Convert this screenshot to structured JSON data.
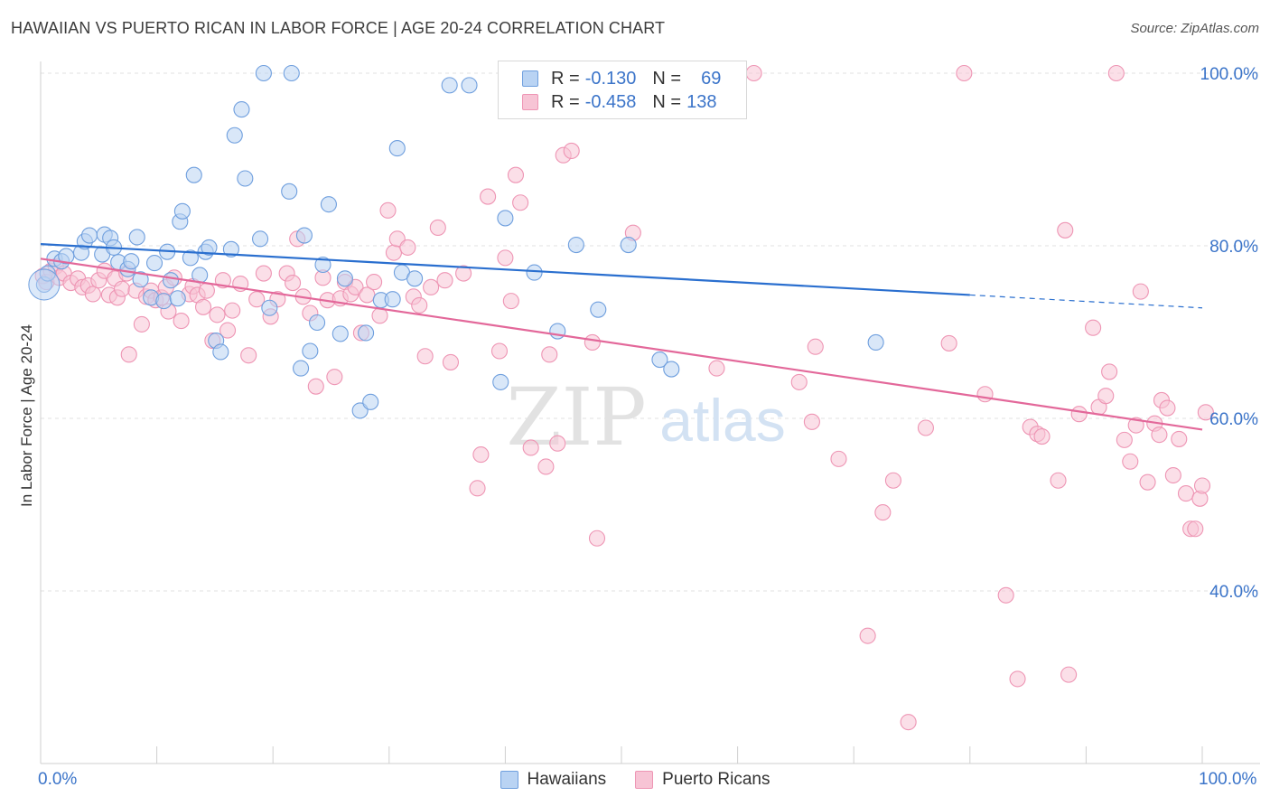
{
  "title": "HAWAIIAN VS PUERTO RICAN IN LABOR FORCE | AGE 20-24 CORRELATION CHART",
  "source": "Source: ZipAtlas.com",
  "watermark": {
    "zip": "ZIP",
    "atlas": "atlas"
  },
  "colors": {
    "blue": "#3b74c9",
    "blue_fill": "#b9d3f3",
    "blue_stroke": "#6f9fde",
    "blue_line": "#2a6fcf",
    "pink": "#e8719b",
    "pink_fill": "#f7c4d5",
    "pink_stroke": "#ee95b4",
    "pink_line": "#e3689a",
    "grid": "#e0e0e0"
  },
  "legend": {
    "rows": [
      {
        "r_label": "R =",
        "r_value": "-0.130",
        "n_label": "N =",
        "n_value": "69",
        "swatch": "blue"
      },
      {
        "r_label": "R =",
        "r_value": "-0.458",
        "n_label": "N =",
        "n_value": "138",
        "swatch": "pink"
      }
    ]
  },
  "bottom_legend": [
    {
      "label": "Hawaiians",
      "swatch": "blue"
    },
    {
      "label": "Puerto Ricans",
      "swatch": "pink"
    }
  ],
  "chart_data": {
    "type": "scatter",
    "xlabel": "",
    "ylabel": "In Labor Force | Age 20-24",
    "xlim": [
      0,
      100
    ],
    "ylim": [
      20,
      104
    ],
    "x_tick_labels": [
      "0.0%",
      "100.0%"
    ],
    "y_ticks": [
      {
        "value": 100,
        "label": "100.0%"
      },
      {
        "value": 80,
        "label": "80.0%"
      },
      {
        "value": 60,
        "label": "60.0%"
      },
      {
        "value": 40,
        "label": "40.0%"
      }
    ],
    "grid": true,
    "legend_position": "top-center",
    "series": [
      {
        "name": "Hawaiians",
        "color": "blue",
        "trend": {
          "x0": 0,
          "y0": 80.2,
          "x1": 80,
          "y1": 74.3,
          "dash_to": 100,
          "dash_y": 72.8
        },
        "points": [
          [
            0.3,
            75.5
          ],
          [
            0.6,
            76.8
          ],
          [
            1.2,
            78.5
          ],
          [
            1.8,
            78.2
          ],
          [
            2.2,
            78.8
          ],
          [
            3.5,
            79.2
          ],
          [
            3.8,
            80.5
          ],
          [
            4.2,
            81.2
          ],
          [
            5.3,
            79.0
          ],
          [
            5.5,
            81.3
          ],
          [
            6.0,
            80.9
          ],
          [
            6.3,
            79.8
          ],
          [
            6.7,
            78.1
          ],
          [
            7.5,
            77.3
          ],
          [
            7.8,
            78.2
          ],
          [
            8.3,
            81.0
          ],
          [
            8.6,
            76.1
          ],
          [
            9.5,
            74.0
          ],
          [
            9.8,
            78.0
          ],
          [
            10.6,
            73.6
          ],
          [
            10.9,
            79.3
          ],
          [
            11.2,
            76.0
          ],
          [
            11.8,
            73.9
          ],
          [
            12.0,
            82.8
          ],
          [
            12.2,
            84.0
          ],
          [
            12.9,
            78.6
          ],
          [
            13.2,
            88.2
          ],
          [
            13.7,
            76.6
          ],
          [
            14.2,
            79.3
          ],
          [
            14.5,
            79.8
          ],
          [
            15.1,
            69.0
          ],
          [
            15.5,
            67.7
          ],
          [
            16.4,
            79.6
          ],
          [
            16.7,
            92.8
          ],
          [
            17.3,
            95.8
          ],
          [
            17.6,
            87.8
          ],
          [
            18.9,
            80.8
          ],
          [
            19.2,
            100.0
          ],
          [
            19.7,
            72.8
          ],
          [
            21.4,
            86.3
          ],
          [
            21.6,
            100.0
          ],
          [
            22.4,
            65.8
          ],
          [
            22.7,
            81.2
          ],
          [
            23.2,
            67.8
          ],
          [
            23.8,
            71.1
          ],
          [
            24.3,
            77.8
          ],
          [
            24.8,
            84.8
          ],
          [
            25.8,
            69.8
          ],
          [
            26.2,
            76.2
          ],
          [
            27.5,
            60.9
          ],
          [
            28.0,
            69.9
          ],
          [
            28.4,
            61.9
          ],
          [
            29.3,
            73.7
          ],
          [
            30.3,
            73.8
          ],
          [
            30.7,
            91.3
          ],
          [
            31.1,
            76.9
          ],
          [
            32.2,
            76.2
          ],
          [
            35.2,
            98.6
          ],
          [
            36.9,
            98.6
          ],
          [
            39.6,
            64.2
          ],
          [
            40.0,
            83.2
          ],
          [
            42.5,
            76.9
          ],
          [
            44.5,
            70.1
          ],
          [
            46.1,
            80.1
          ],
          [
            48.0,
            72.6
          ],
          [
            50.6,
            80.1
          ],
          [
            53.3,
            66.8
          ],
          [
            54.3,
            65.7
          ],
          [
            71.9,
            68.8
          ]
        ]
      },
      {
        "name": "Puerto Ricans",
        "color": "pink",
        "trend": {
          "x0": 0,
          "y0": 78.5,
          "x1": 100,
          "y1": 58.7
        },
        "points": [
          [
            0.2,
            76.5
          ],
          [
            0.5,
            75.8
          ],
          [
            0.9,
            77.1
          ],
          [
            1.3,
            77.6
          ],
          [
            1.6,
            76.3
          ],
          [
            2.0,
            76.8
          ],
          [
            2.6,
            75.7
          ],
          [
            3.2,
            76.2
          ],
          [
            3.6,
            75.2
          ],
          [
            4.1,
            75.4
          ],
          [
            4.5,
            74.4
          ],
          [
            5.0,
            76.0
          ],
          [
            5.5,
            77.1
          ],
          [
            5.9,
            74.3
          ],
          [
            6.4,
            76.2
          ],
          [
            6.6,
            74.0
          ],
          [
            7.0,
            75.0
          ],
          [
            7.4,
            76.8
          ],
          [
            7.6,
            67.4
          ],
          [
            8.2,
            74.8
          ],
          [
            8.7,
            70.9
          ],
          [
            9.1,
            74.1
          ],
          [
            9.5,
            74.8
          ],
          [
            9.9,
            73.7
          ],
          [
            10.4,
            74.0
          ],
          [
            10.8,
            75.2
          ],
          [
            11.0,
            72.4
          ],
          [
            11.5,
            76.3
          ],
          [
            12.1,
            71.3
          ],
          [
            12.8,
            74.4
          ],
          [
            13.1,
            75.3
          ],
          [
            13.5,
            74.3
          ],
          [
            14.0,
            72.9
          ],
          [
            14.3,
            74.8
          ],
          [
            14.8,
            69.0
          ],
          [
            15.2,
            72.0
          ],
          [
            15.7,
            76.0
          ],
          [
            16.1,
            70.2
          ],
          [
            16.5,
            72.5
          ],
          [
            17.2,
            75.6
          ],
          [
            17.9,
            67.3
          ],
          [
            18.6,
            73.8
          ],
          [
            19.2,
            76.8
          ],
          [
            19.8,
            71.8
          ],
          [
            20.4,
            73.8
          ],
          [
            21.2,
            76.8
          ],
          [
            21.7,
            75.7
          ],
          [
            22.1,
            80.8
          ],
          [
            22.6,
            74.1
          ],
          [
            23.2,
            72.2
          ],
          [
            23.7,
            63.7
          ],
          [
            24.3,
            76.3
          ],
          [
            24.7,
            73.7
          ],
          [
            25.3,
            64.8
          ],
          [
            25.8,
            73.9
          ],
          [
            26.2,
            75.8
          ],
          [
            26.7,
            74.4
          ],
          [
            27.1,
            75.2
          ],
          [
            27.6,
            69.9
          ],
          [
            28.1,
            74.3
          ],
          [
            28.7,
            75.8
          ],
          [
            29.2,
            71.9
          ],
          [
            29.9,
            84.1
          ],
          [
            30.4,
            79.2
          ],
          [
            30.7,
            80.8
          ],
          [
            31.6,
            79.8
          ],
          [
            32.1,
            74.1
          ],
          [
            32.6,
            73.1
          ],
          [
            33.1,
            67.2
          ],
          [
            33.6,
            75.2
          ],
          [
            34.2,
            82.1
          ],
          [
            34.8,
            76.0
          ],
          [
            35.3,
            66.5
          ],
          [
            36.4,
            76.8
          ],
          [
            37.6,
            51.9
          ],
          [
            37.9,
            55.8
          ],
          [
            38.5,
            85.7
          ],
          [
            39.5,
            67.8
          ],
          [
            40.0,
            78.6
          ],
          [
            40.5,
            73.6
          ],
          [
            40.9,
            88.2
          ],
          [
            41.3,
            85.0
          ],
          [
            42.2,
            56.6
          ],
          [
            43.5,
            54.4
          ],
          [
            43.8,
            67.4
          ],
          [
            44.5,
            57.1
          ],
          [
            45.0,
            90.5
          ],
          [
            45.7,
            91.0
          ],
          [
            47.5,
            68.8
          ],
          [
            47.9,
            46.1
          ],
          [
            48.5,
            100.0
          ],
          [
            49.5,
            100.0
          ],
          [
            51.0,
            81.5
          ],
          [
            58.2,
            65.8
          ],
          [
            61.4,
            100.0
          ],
          [
            65.3,
            64.2
          ],
          [
            66.4,
            59.6
          ],
          [
            66.7,
            68.3
          ],
          [
            68.7,
            55.3
          ],
          [
            71.2,
            34.8
          ],
          [
            72.5,
            49.1
          ],
          [
            73.4,
            52.8
          ],
          [
            74.7,
            24.8
          ],
          [
            76.2,
            58.9
          ],
          [
            78.2,
            68.7
          ],
          [
            79.5,
            100.0
          ],
          [
            81.3,
            62.8
          ],
          [
            83.1,
            39.5
          ],
          [
            84.1,
            29.8
          ],
          [
            85.2,
            59.0
          ],
          [
            85.8,
            58.2
          ],
          [
            86.2,
            57.9
          ],
          [
            87.6,
            52.8
          ],
          [
            88.2,
            81.8
          ],
          [
            88.5,
            30.3
          ],
          [
            89.4,
            60.5
          ],
          [
            90.6,
            70.5
          ],
          [
            91.1,
            61.3
          ],
          [
            91.7,
            62.6
          ],
          [
            92.0,
            65.4
          ],
          [
            92.6,
            100.0
          ],
          [
            93.3,
            57.5
          ],
          [
            93.8,
            55.0
          ],
          [
            94.3,
            59.2
          ],
          [
            94.7,
            74.7
          ],
          [
            95.3,
            52.6
          ],
          [
            95.9,
            59.4
          ],
          [
            96.3,
            58.1
          ],
          [
            96.5,
            62.1
          ],
          [
            97.0,
            61.2
          ],
          [
            97.5,
            53.4
          ],
          [
            98.0,
            57.6
          ],
          [
            98.6,
            51.3
          ],
          [
            99.0,
            47.2
          ],
          [
            99.4,
            47.2
          ],
          [
            99.8,
            50.7
          ],
          [
            100.0,
            52.2
          ],
          [
            100.3,
            60.7
          ]
        ]
      }
    ]
  }
}
